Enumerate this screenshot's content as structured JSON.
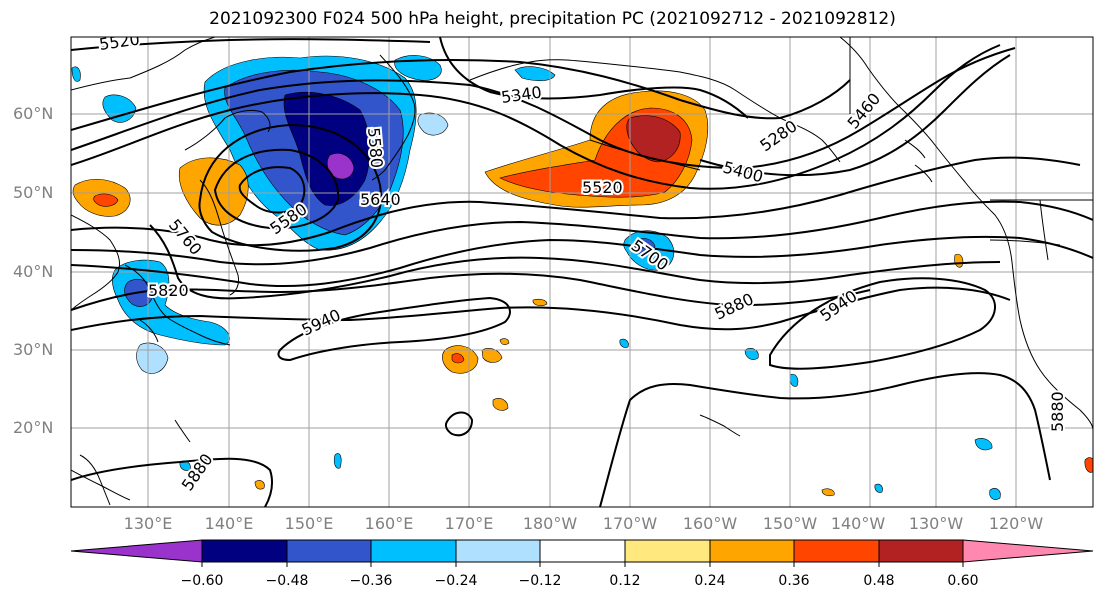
{
  "title": "2021092300 F024 500 hPa height, precipitation PC (2021092712 - 2021092812)",
  "lat_labels": [
    "60°N",
    "50°N",
    "40°N",
    "30°N",
    "20°N"
  ],
  "lon_labels": [
    "130°E",
    "140°E",
    "150°E",
    "160°E",
    "170°E",
    "180°W",
    "170°W",
    "160°W",
    "150°W",
    "140°W",
    "130°W",
    "120°W"
  ],
  "contour_labels": [
    "5520",
    "5340",
    "5580",
    "5640",
    "5760",
    "5820",
    "5580",
    "5940",
    "5520",
    "5400",
    "5280",
    "5460",
    "5700",
    "5880",
    "5940",
    "5880",
    "5880"
  ],
  "colorbar": {
    "ticks": [
      "−0.60",
      "−0.48",
      "−0.36",
      "−0.24",
      "−0.12",
      "0.12",
      "0.24",
      "0.36",
      "0.48",
      "0.60"
    ],
    "colors": [
      "#9933cc",
      "#000080",
      "#3355cc",
      "#00bfff",
      "#b0e0ff",
      "#ffffff",
      "#ffe97f",
      "#ffa500",
      "#ff4500",
      "#b22222",
      "#ff88b0"
    ]
  },
  "colors": {
    "land_outline": "#000000",
    "grid": "#a0a0a0",
    "axis_label": "#808080"
  }
}
